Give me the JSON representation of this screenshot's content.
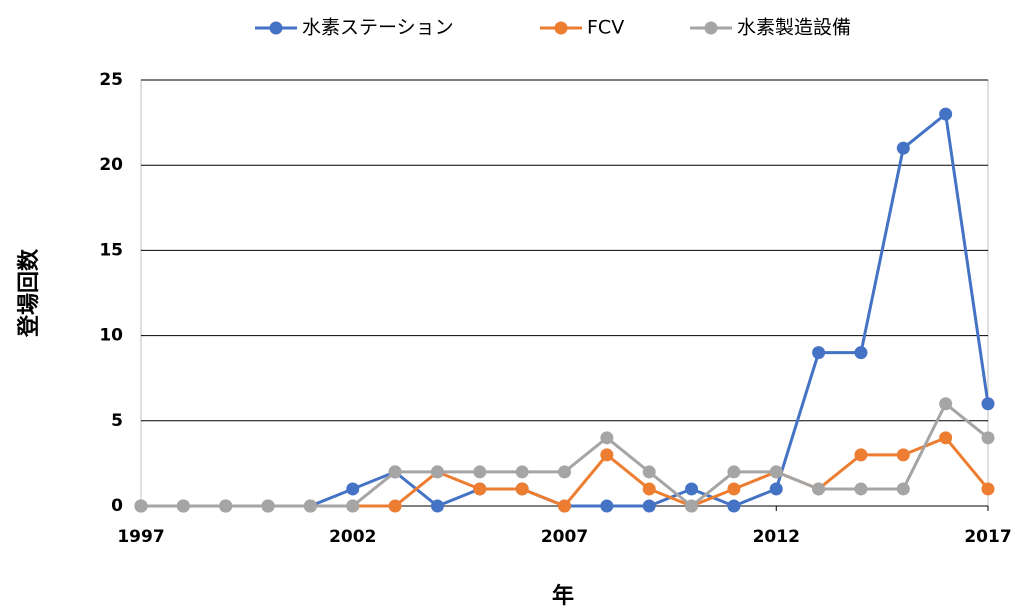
{
  "chart_data": {
    "type": "line",
    "x": [
      1997,
      1998,
      1999,
      2000,
      2001,
      2002,
      2003,
      2004,
      2005,
      2006,
      2007,
      2008,
      2009,
      2010,
      2011,
      2012,
      2013,
      2014,
      2015,
      2016,
      2017
    ],
    "series": [
      {
        "name": "水素ステーション",
        "color": "#4472c4",
        "values": [
          0,
          0,
          0,
          0,
          0,
          1,
          2,
          0,
          1,
          1,
          0,
          0,
          0,
          1,
          0,
          1,
          9,
          9,
          21,
          23,
          6
        ]
      },
      {
        "name": "FCV",
        "color": "#ed7d31",
        "values": [
          0,
          0,
          0,
          0,
          0,
          0,
          0,
          2,
          1,
          1,
          0,
          3,
          1,
          0,
          1,
          2,
          1,
          3,
          3,
          4,
          1
        ]
      },
      {
        "name": "水素製造設備",
        "color": "#a5a5a5",
        "values": [
          0,
          0,
          0,
          0,
          0,
          0,
          2,
          2,
          2,
          2,
          2,
          4,
          2,
          0,
          2,
          2,
          1,
          1,
          1,
          6,
          4
        ]
      }
    ],
    "xlim": [
      1997,
      2017
    ],
    "xticks": [
      1997,
      2002,
      2007,
      2012,
      2017
    ],
    "ylim": [
      0,
      25
    ],
    "yticks": [
      0,
      5,
      10,
      15,
      20,
      25
    ],
    "xlabel": "年",
    "ylabel": "登場回数",
    "grid": true,
    "legend": "top"
  }
}
